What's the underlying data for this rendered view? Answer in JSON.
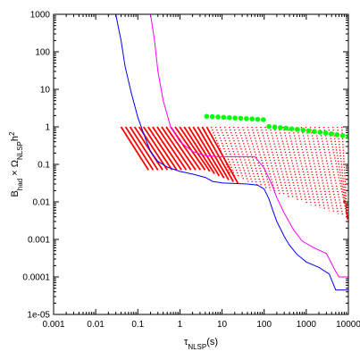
{
  "chart_data": {
    "type": "line",
    "xscale": "log",
    "yscale": "log",
    "xlim": [
      0.001,
      10000
    ],
    "ylim": [
      1e-05,
      1000
    ],
    "grid": false,
    "legend": "none",
    "title": "",
    "xlabel": {
      "main": "τ",
      "sub": "NLSP",
      "rest": "(s)"
    },
    "ylabel": {
      "p1": "B",
      "p1sub": "had",
      "p2": " × Ω",
      "p2sub": "NLSP",
      "p3": "h",
      "p3sup": "2"
    },
    "xticks": [
      {
        "value": 0.001,
        "label": "0.001"
      },
      {
        "value": 0.01,
        "label": "0.01"
      },
      {
        "value": 0.1,
        "label": "0.1"
      },
      {
        "value": 1,
        "label": "1"
      },
      {
        "value": 10,
        "label": "10"
      },
      {
        "value": 100,
        "label": "100"
      },
      {
        "value": 1000,
        "label": "1000"
      },
      {
        "value": 10000,
        "label": "10000"
      }
    ],
    "yticks": [
      {
        "value": 1e-05,
        "label": "1e-05"
      },
      {
        "value": 0.0001,
        "label": "0.0001"
      },
      {
        "value": 0.001,
        "label": "0.001"
      },
      {
        "value": 0.01,
        "label": "0.01"
      },
      {
        "value": 0.1,
        "label": "0.1"
      },
      {
        "value": 1,
        "label": "1"
      },
      {
        "value": 10,
        "label": "10"
      },
      {
        "value": 100,
        "label": "100"
      },
      {
        "value": 1000,
        "label": "1000"
      }
    ],
    "colors": {
      "blue": "#0000ff",
      "magenta": "#ff00ff",
      "red": "#ff0000",
      "green": "#00ff00",
      "axes": "#000000"
    },
    "series": [
      {
        "color": "blue",
        "style": "solid",
        "points": [
          [
            0.03,
            1000
          ],
          [
            0.04,
            200
          ],
          [
            0.05,
            40
          ],
          [
            0.07,
            8
          ],
          [
            0.1,
            1.8
          ],
          [
            0.15,
            0.5
          ],
          [
            0.2,
            0.22
          ],
          [
            0.3,
            0.12
          ],
          [
            0.5,
            0.085
          ],
          [
            1,
            0.065
          ],
          [
            2,
            0.055
          ],
          [
            4,
            0.045
          ],
          [
            6,
            0.035
          ],
          [
            10,
            0.032
          ],
          [
            20,
            0.031
          ],
          [
            40,
            0.03
          ],
          [
            70,
            0.028
          ],
          [
            100,
            0.022
          ],
          [
            130,
            0.012
          ],
          [
            160,
            0.006
          ],
          [
            200,
            0.003
          ],
          [
            300,
            0.0012
          ],
          [
            400,
            0.0007
          ],
          [
            600,
            0.0004
          ],
          [
            1000,
            0.00025
          ],
          [
            2000,
            0.00018
          ],
          [
            3500,
            0.00012
          ],
          [
            5000,
            4.5e-05
          ],
          [
            7000,
            4.5e-05
          ],
          [
            10000,
            4.5e-05
          ]
        ]
      },
      {
        "color": "magenta",
        "style": "solid",
        "points": [
          [
            0.2,
            1000
          ],
          [
            0.25,
            200
          ],
          [
            0.3,
            30
          ],
          [
            0.4,
            5
          ],
          [
            0.6,
            1
          ],
          [
            1,
            0.4
          ],
          [
            2,
            0.22
          ],
          [
            4,
            0.17
          ],
          [
            8,
            0.16
          ],
          [
            15,
            0.16
          ],
          [
            30,
            0.16
          ],
          [
            60,
            0.16
          ],
          [
            100,
            0.08
          ],
          [
            150,
            0.03
          ],
          [
            200,
            0.013
          ],
          [
            300,
            0.005
          ],
          [
            500,
            0.0018
          ],
          [
            800,
            0.0009
          ],
          [
            1500,
            0.0006
          ],
          [
            3000,
            0.00042
          ],
          [
            5000,
            0.00014
          ],
          [
            6000,
            0.0001
          ],
          [
            10000,
            0.0001
          ]
        ]
      }
    ],
    "band": {
      "count": 50,
      "tau_start_min": 0.04,
      "tau_start_max": 7000,
      "start_value": 1,
      "solid_until_index": 20,
      "green_from_index": 19,
      "green_marker_count": 26
    }
  }
}
